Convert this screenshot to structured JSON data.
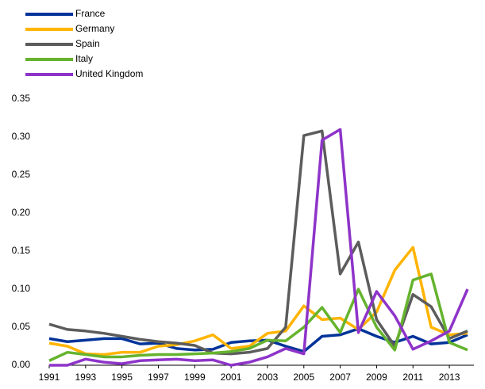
{
  "chart_data": {
    "type": "line",
    "x": [
      1991,
      1992,
      1993,
      1994,
      1995,
      1996,
      1997,
      1998,
      1999,
      2000,
      2001,
      2002,
      2003,
      2004,
      2005,
      2006,
      2007,
      2008,
      2009,
      2010,
      2011,
      2012,
      2013,
      2014
    ],
    "xlim": [
      1991,
      2014
    ],
    "xticks": [
      1991,
      1993,
      1995,
      1997,
      1999,
      2001,
      2003,
      2005,
      2007,
      2009,
      2011,
      2013
    ],
    "ylim": [
      0,
      0.35
    ],
    "yticks": [
      {
        "value": 0,
        "label": "0.00"
      },
      {
        "value": 0.05,
        "label": "0.05"
      },
      {
        "value": 0.1,
        "label": "0.10"
      },
      {
        "value": 0.15,
        "label": "0.15"
      },
      {
        "value": 0.2,
        "label": "0.20"
      },
      {
        "value": 0.25,
        "label": "0.25"
      },
      {
        "value": 0.3,
        "label": "0.30"
      },
      {
        "value": 0.35,
        "label": "0.35"
      }
    ],
    "legend": "top-left",
    "series": [
      {
        "name": "France",
        "color": "#003399",
        "values": [
          0.035,
          0.031,
          0.033,
          0.035,
          0.035,
          0.028,
          0.029,
          0.022,
          0.02,
          0.021,
          0.03,
          0.032,
          0.033,
          0.025,
          0.018,
          0.038,
          0.04,
          0.048,
          0.038,
          0.03,
          0.038,
          0.028,
          0.03,
          0.04
        ]
      },
      {
        "name": "Germany",
        "color": "#ffb400",
        "values": [
          0.029,
          0.025,
          0.015,
          0.014,
          0.017,
          0.017,
          0.025,
          0.027,
          0.032,
          0.04,
          0.022,
          0.025,
          0.042,
          0.045,
          0.078,
          0.06,
          0.062,
          0.047,
          0.07,
          0.125,
          0.155,
          0.05,
          0.04,
          0.042
        ]
      },
      {
        "name": "Spain",
        "color": "#5c5c5c",
        "values": [
          0.054,
          0.047,
          0.045,
          0.042,
          0.038,
          0.034,
          0.031,
          0.029,
          0.026,
          0.016,
          0.015,
          0.017,
          0.022,
          0.05,
          0.302,
          0.308,
          0.12,
          0.162,
          0.06,
          0.025,
          0.093,
          0.077,
          0.035,
          0.045
        ]
      },
      {
        "name": "Italy",
        "color": "#65b32e",
        "values": [
          0.006,
          0.017,
          0.014,
          0.011,
          0.011,
          0.013,
          0.014,
          0.014,
          0.015,
          0.016,
          0.018,
          0.022,
          0.033,
          0.032,
          0.05,
          0.076,
          0.043,
          0.1,
          0.05,
          0.02,
          0.112,
          0.12,
          0.03,
          0.02
        ]
      },
      {
        "name": "United Kingdom",
        "color": "#8e34c9",
        "values": [
          0.0,
          0.0,
          0.008,
          0.004,
          0.002,
          0.006,
          0.007,
          0.008,
          0.006,
          0.007,
          0.0,
          0.004,
          0.011,
          0.022,
          0.015,
          0.296,
          0.31,
          0.043,
          0.097,
          0.065,
          0.021,
          0.032,
          0.045,
          0.1
        ]
      }
    ]
  }
}
